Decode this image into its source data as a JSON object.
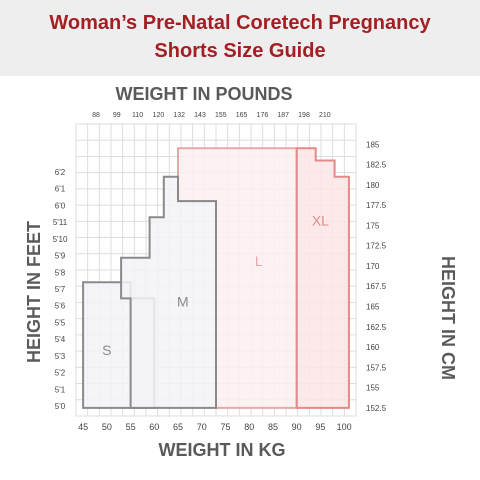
{
  "header": {
    "title_line1": "Woman’s Pre-Natal Coretech Pregnancy",
    "title_line2": "Shorts Size Guide"
  },
  "chart_data": {
    "type": "area",
    "title": "Woman’s Pre-Natal Coretech Pregnancy Shorts Size Guide",
    "top_axis": {
      "label": "WEIGHT IN POUNDS",
      "ticks": [
        "88",
        "99",
        "110",
        "120",
        "132",
        "143",
        "155",
        "165",
        "176",
        "187",
        "198",
        "210"
      ]
    },
    "bottom_axis": {
      "label": "WEIGHT IN KG",
      "ticks": [
        "45",
        "50",
        "55",
        "60",
        "65",
        "70",
        "75",
        "80",
        "85",
        "90",
        "95",
        "100"
      ],
      "range": [
        43.5,
        102.5
      ]
    },
    "left_axis": {
      "label": "HEIGHT IN FEET",
      "ticks": [
        "6'2",
        "6'1",
        "6'0",
        "5'11",
        "5'10",
        "5'9",
        "5'8",
        "5'7",
        "5'6",
        "5'5",
        "5'4",
        "5'3",
        "5'2",
        "5'1",
        "5'0"
      ]
    },
    "right_axis": {
      "label": "HEIGHT IN CM",
      "ticks": [
        "185",
        "182.5",
        "180",
        "177.5",
        "175",
        "172.5",
        "170",
        "167.5",
        "165",
        "162.5",
        "160",
        "157.5",
        "155",
        "152.5"
      ],
      "range": [
        151.5,
        187.5
      ]
    },
    "grid": true,
    "sizes": [
      {
        "name": "S",
        "color": "#8a8a8a",
        "fill": "#f3f3f8",
        "outline": [
          [
            45,
            152.5
          ],
          [
            60,
            152.5
          ],
          [
            60,
            166
          ],
          [
            55,
            166
          ],
          [
            55,
            168
          ],
          [
            45,
            168
          ]
        ],
        "label_at": [
          50,
          159
        ]
      },
      {
        "name": "M",
        "color": "#8a8a8a",
        "fill": "#f3f3f8",
        "outline": [
          [
            55,
            152.5
          ],
          [
            73,
            152.5
          ],
          [
            73,
            178
          ],
          [
            65,
            178
          ],
          [
            65,
            181
          ],
          [
            62,
            181
          ],
          [
            62,
            176
          ],
          [
            59,
            176
          ],
          [
            59,
            171
          ],
          [
            53,
            171
          ],
          [
            53,
            166
          ],
          [
            55,
            166
          ]
        ],
        "label_at": [
          66,
          165
        ]
      },
      {
        "name": "L",
        "color": "#e8a8a8",
        "fill": "#fcf0f0",
        "outline": [
          [
            73,
            152.5
          ],
          [
            90,
            152.5
          ],
          [
            90,
            184.5
          ],
          [
            65,
            184.5
          ],
          [
            65,
            178
          ],
          [
            73,
            178
          ]
        ],
        "label_at": [
          82,
          170
        ]
      },
      {
        "name": "XL",
        "color": "#e58888",
        "fill": "#fbe6e6",
        "outline": [
          [
            90,
            152.5
          ],
          [
            101,
            152.5
          ],
          [
            101,
            181
          ],
          [
            98,
            181
          ],
          [
            98,
            183
          ],
          [
            94,
            183
          ],
          [
            94,
            184.5
          ],
          [
            90,
            184.5
          ]
        ],
        "label_at": [
          95,
          175
        ]
      }
    ],
    "colors": {
      "axis_title": "#5a5a5a",
      "grid": "#dddddd",
      "header_text": "#a31f24",
      "header_bg": "#eeeeee"
    }
  }
}
